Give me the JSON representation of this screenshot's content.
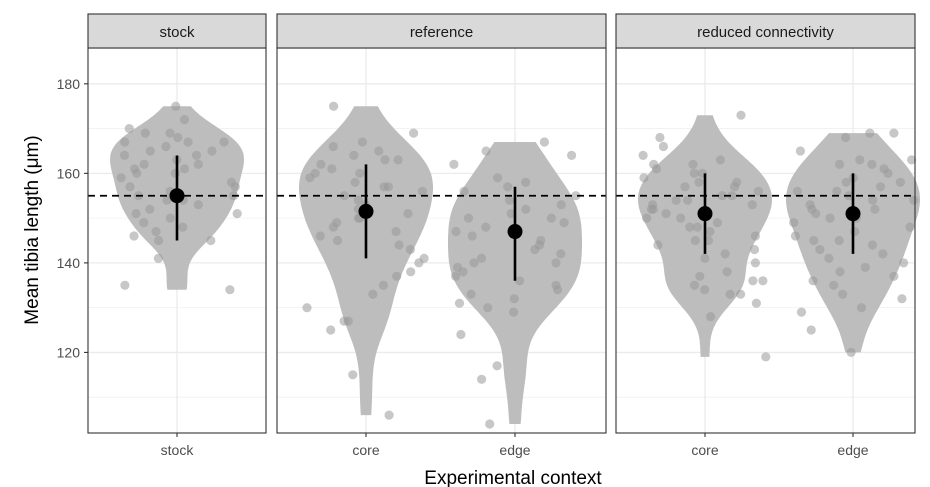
{
  "chart_data": {
    "type": "scatter",
    "ylabel": "Mean tibia length (μm)",
    "xlabel": "Experimental context",
    "ylim": [
      102,
      188
    ],
    "yticks": [
      120,
      140,
      160,
      180
    ],
    "reference_line": 155,
    "grid": true,
    "colors": {
      "point": "#999999",
      "violin": "#bdbdbd",
      "strip": "#d9d9d9",
      "mean": "#000000"
    },
    "panels": [
      {
        "title": "stock",
        "categories": [
          {
            "label": "stock",
            "mean": 155,
            "low": 145,
            "high": 164,
            "points": [
              175,
              172,
              170,
              169,
              169,
              168,
              167,
              167,
              167,
              166,
              165,
              165,
              164,
              164,
              163,
              162,
              162,
              161,
              161,
              160,
              160,
              159,
              158,
              157,
              157,
              156,
              155,
              155,
              154,
              154,
              153,
              152,
              151,
              151,
              150,
              149,
              148,
              147,
              146,
              145,
              145,
              141,
              135,
              134
            ]
          }
        ]
      },
      {
        "title": "reference",
        "categories": [
          {
            "label": "core",
            "mean": 151.5,
            "low": 141,
            "high": 162,
            "points": [
              175,
              169,
              167,
              166,
              165,
              164,
              163,
              163,
              162,
              161,
              160,
              160,
              159,
              158,
              157,
              157,
              156,
              155,
              154,
              153,
              152,
              151,
              150,
              150,
              149,
              148,
              147,
              146,
              145,
              144,
              143,
              141,
              140,
              138,
              137,
              135,
              133,
              130,
              127,
              127,
              125,
              115,
              106
            ]
          },
          {
            "label": "edge",
            "mean": 147,
            "low": 136,
            "high": 157,
            "points": [
              167,
              165,
              164,
              162,
              159,
              158,
              157,
              156,
              155,
              154,
              153,
              152,
              151,
              150,
              150,
              149,
              148,
              147,
              146,
              145,
              144,
              143,
              142,
              141,
              140,
              140,
              139,
              138,
              137,
              136,
              135,
              134,
              133,
              132,
              131,
              130,
              129,
              124,
              117,
              114,
              104
            ]
          }
        ]
      },
      {
        "title": "reduced connectivity",
        "categories": [
          {
            "label": "core",
            "mean": 151,
            "low": 142,
            "high": 160,
            "points": [
              173,
              168,
              166,
              164,
              163,
              162,
              162,
              161,
              160,
              160,
              159,
              158,
              158,
              157,
              157,
              156,
              155,
              155,
              154,
              154,
              153,
              153,
              152,
              152,
              151,
              150,
              150,
              149,
              148,
              148,
              147,
              146,
              145,
              145,
              144,
              143,
              142,
              141,
              140,
              138,
              137,
              136,
              136,
              135,
              134,
              133,
              133,
              131,
              128,
              119
            ]
          },
          {
            "label": "edge",
            "mean": 151,
            "low": 142,
            "high": 160,
            "points": [
              169,
              169,
              168,
              165,
              163,
              163,
              162,
              162,
              161,
              160,
              159,
              158,
              158,
              157,
              156,
              156,
              155,
              154,
              154,
              153,
              152,
              152,
              151,
              150,
              150,
              149,
              148,
              147,
              146,
              145,
              145,
              144,
              143,
              142,
              141,
              140,
              139,
              138,
              137,
              136,
              135,
              133,
              132,
              130,
              129,
              125,
              120
            ]
          }
        ]
      }
    ]
  }
}
